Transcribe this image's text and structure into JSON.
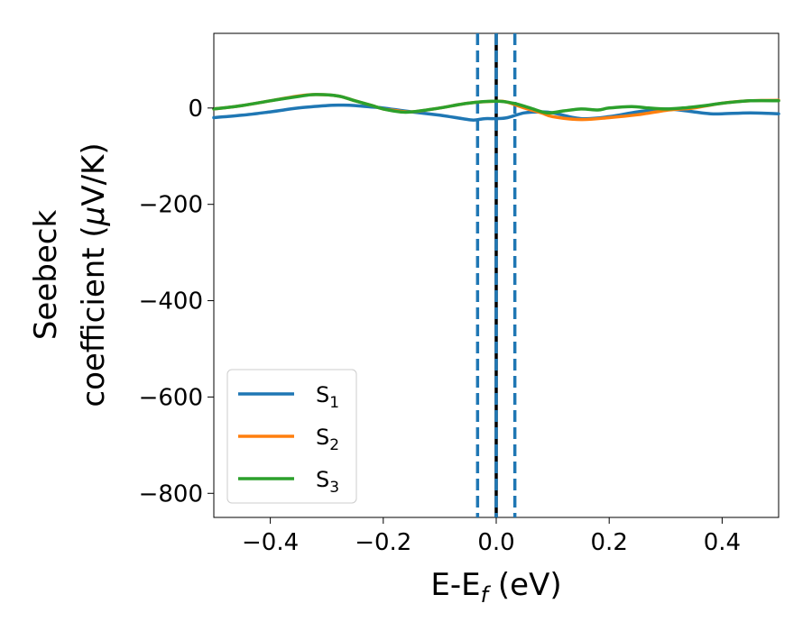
{
  "chart_data": {
    "type": "line",
    "xlabel": "E-E",
    "xlabel_sub": "f",
    "xlabel_unit": " (eV)",
    "ylabel_line1": "Seebeck",
    "ylabel_line2_pre": "coefficient  (",
    "ylabel_mu": "μ",
    "ylabel_line2_post": "V/K)",
    "xlim": [
      -0.5,
      0.5
    ],
    "ylim": [
      -850,
      155
    ],
    "x_ticks": [
      -0.4,
      -0.2,
      0.0,
      0.2,
      0.4
    ],
    "x_tick_labels": [
      "−0.4",
      "−0.2",
      "0.0",
      "0.2",
      "0.4"
    ],
    "y_ticks": [
      0,
      -200,
      -400,
      -600,
      -800
    ],
    "y_tick_labels": [
      "0",
      "−200",
      "−400",
      "−600",
      "−800"
    ],
    "grid": false,
    "legend_position": "lower-left",
    "vlines": [
      {
        "x": -0.033,
        "style": "dashed",
        "color": "#1f77b4"
      },
      {
        "x": 0.0,
        "style": "solid",
        "color": "#000000"
      },
      {
        "x": 0.0,
        "style": "dashed",
        "color": "#1f77b4"
      },
      {
        "x": 0.033,
        "style": "dashed",
        "color": "#1f77b4"
      }
    ],
    "series": [
      {
        "name_main": "S",
        "name_sub": "1",
        "color": "#1f77b4",
        "x": [
          -0.5,
          -0.45,
          -0.4,
          -0.35,
          -0.3,
          -0.28,
          -0.25,
          -0.22,
          -0.2,
          -0.15,
          -0.1,
          -0.06,
          -0.04,
          -0.02,
          0.0,
          0.02,
          0.05,
          0.08,
          0.1,
          0.15,
          0.2,
          0.25,
          0.3,
          0.33,
          0.35,
          0.38,
          0.4,
          0.45,
          0.5
        ],
        "y": [
          -20,
          -15,
          -8,
          0,
          5,
          6,
          5,
          2,
          0,
          -8,
          -15,
          -22,
          -25,
          -22,
          -22,
          -20,
          -10,
          -8,
          -10,
          -22,
          -18,
          -8,
          -2,
          -5,
          -8,
          -12,
          -12,
          -10,
          -12
        ]
      },
      {
        "name_main": "S",
        "name_sub": "2",
        "color": "#ff7f0e",
        "x": [
          -0.5,
          -0.45,
          -0.4,
          -0.35,
          -0.32,
          -0.28,
          -0.25,
          -0.22,
          -0.2,
          -0.18,
          -0.15,
          -0.1,
          -0.05,
          0.0,
          0.02,
          0.05,
          0.08,
          0.1,
          0.15,
          0.2,
          0.25,
          0.3,
          0.33,
          0.35,
          0.4,
          0.45,
          0.5
        ],
        "y": [
          -2,
          5,
          15,
          25,
          28,
          25,
          15,
          5,
          -2,
          -5,
          -8,
          0,
          10,
          14,
          12,
          0,
          -10,
          -18,
          -24,
          -20,
          -14,
          -5,
          -2,
          0,
          10,
          15,
          16
        ]
      },
      {
        "name_main": "S",
        "name_sub": "3",
        "color": "#2ca02c",
        "x": [
          -0.5,
          -0.45,
          -0.4,
          -0.35,
          -0.32,
          -0.28,
          -0.25,
          -0.22,
          -0.2,
          -0.17,
          -0.15,
          -0.1,
          -0.05,
          0.0,
          0.03,
          0.06,
          0.09,
          0.12,
          0.15,
          0.18,
          0.2,
          0.24,
          0.27,
          0.3,
          0.33,
          0.37,
          0.4,
          0.45,
          0.5
        ],
        "y": [
          -2,
          5,
          15,
          24,
          28,
          25,
          15,
          5,
          -2,
          -8,
          -8,
          0,
          10,
          14,
          10,
          0,
          -10,
          -6,
          -2,
          -4,
          0,
          3,
          0,
          -2,
          0,
          5,
          10,
          15,
          15
        ]
      }
    ]
  }
}
